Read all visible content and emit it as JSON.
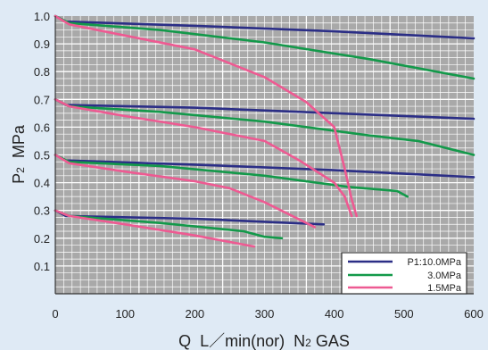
{
  "chart_data": {
    "type": "line",
    "xlabel_parts": {
      "q": "Q",
      "unit": "L／min(nor)",
      "gas_n": "N",
      "gas_sub": "2",
      "gas_rest": " GAS"
    },
    "ylabel_parts": {
      "p": "P",
      "sub": "2",
      "unit": "MPa"
    },
    "xlim": [
      0,
      600
    ],
    "ylim": [
      0,
      1.0
    ],
    "x_ticks": [
      0,
      100,
      200,
      300,
      400,
      500,
      600
    ],
    "y_ticks": [
      0.1,
      0.2,
      0.3,
      0.4,
      0.5,
      0.6,
      0.7,
      0.8,
      0.9,
      1.0
    ],
    "y_tick_labels": [
      "0.1",
      "0.2",
      "0.3",
      "0.4",
      "0.5",
      "0.6",
      "0.7",
      "0.8",
      "0.9",
      "1.0"
    ],
    "grid": true,
    "legend_position": "bottom-right",
    "legend": [
      {
        "label": "P1:10.0MPa",
        "color": "#2b2e86"
      },
      {
        "label": "3.0MPa",
        "color": "#13994a"
      },
      {
        "label": "1.5MPa",
        "color": "#ee5a92"
      }
    ],
    "colors": {
      "p10": "#2b2e86",
      "p3": "#13994a",
      "p15": "#ee5a92",
      "background": "#dfeaf5",
      "plot_bg": "#a9a9a9"
    },
    "series": [
      {
        "group": "p10",
        "points": [
          [
            0,
            1.0
          ],
          [
            15,
            0.98
          ],
          [
            200,
            0.965
          ],
          [
            400,
            0.945
          ],
          [
            600,
            0.92
          ]
        ]
      },
      {
        "group": "p10",
        "points": [
          [
            0,
            0.7
          ],
          [
            15,
            0.68
          ],
          [
            200,
            0.67
          ],
          [
            400,
            0.65
          ],
          [
            600,
            0.63
          ]
        ]
      },
      {
        "group": "p10",
        "points": [
          [
            0,
            0.5
          ],
          [
            15,
            0.48
          ],
          [
            200,
            0.465
          ],
          [
            400,
            0.445
          ],
          [
            600,
            0.42
          ]
        ]
      },
      {
        "group": "p10",
        "points": [
          [
            0,
            0.3
          ],
          [
            15,
            0.28
          ],
          [
            200,
            0.27
          ],
          [
            385,
            0.25
          ]
        ]
      },
      {
        "group": "p3",
        "points": [
          [
            0,
            1.0
          ],
          [
            20,
            0.975
          ],
          [
            150,
            0.95
          ],
          [
            300,
            0.905
          ],
          [
            450,
            0.845
          ],
          [
            600,
            0.775
          ]
        ]
      },
      {
        "group": "p3",
        "points": [
          [
            0,
            0.7
          ],
          [
            20,
            0.675
          ],
          [
            150,
            0.655
          ],
          [
            300,
            0.62
          ],
          [
            450,
            0.57
          ],
          [
            520,
            0.55
          ],
          [
            600,
            0.5
          ]
        ]
      },
      {
        "group": "p3",
        "points": [
          [
            0,
            0.5
          ],
          [
            20,
            0.475
          ],
          [
            150,
            0.46
          ],
          [
            300,
            0.425
          ],
          [
            420,
            0.385
          ],
          [
            490,
            0.37
          ],
          [
            505,
            0.35
          ]
        ]
      },
      {
        "group": "p3",
        "points": [
          [
            0,
            0.3
          ],
          [
            20,
            0.28
          ],
          [
            150,
            0.255
          ],
          [
            270,
            0.225
          ],
          [
            300,
            0.205
          ],
          [
            325,
            0.2
          ]
        ]
      },
      {
        "group": "p15",
        "points": [
          [
            0,
            1.0
          ],
          [
            20,
            0.97
          ],
          [
            100,
            0.93
          ],
          [
            200,
            0.88
          ],
          [
            300,
            0.78
          ],
          [
            360,
            0.69
          ],
          [
            400,
            0.6
          ],
          [
            415,
            0.45
          ],
          [
            425,
            0.34
          ],
          [
            432,
            0.28
          ]
        ]
      },
      {
        "group": "p15",
        "points": [
          [
            0,
            0.7
          ],
          [
            20,
            0.675
          ],
          [
            100,
            0.64
          ],
          [
            200,
            0.6
          ],
          [
            300,
            0.55
          ],
          [
            350,
            0.48
          ],
          [
            400,
            0.4
          ],
          [
            415,
            0.35
          ],
          [
            425,
            0.28
          ]
        ]
      },
      {
        "group": "p15",
        "points": [
          [
            0,
            0.5
          ],
          [
            20,
            0.47
          ],
          [
            100,
            0.44
          ],
          [
            200,
            0.405
          ],
          [
            250,
            0.38
          ],
          [
            300,
            0.33
          ],
          [
            372,
            0.24
          ]
        ]
      },
      {
        "group": "p15",
        "points": [
          [
            0,
            0.3
          ],
          [
            20,
            0.28
          ],
          [
            100,
            0.25
          ],
          [
            200,
            0.21
          ],
          [
            285,
            0.17
          ]
        ]
      }
    ]
  }
}
